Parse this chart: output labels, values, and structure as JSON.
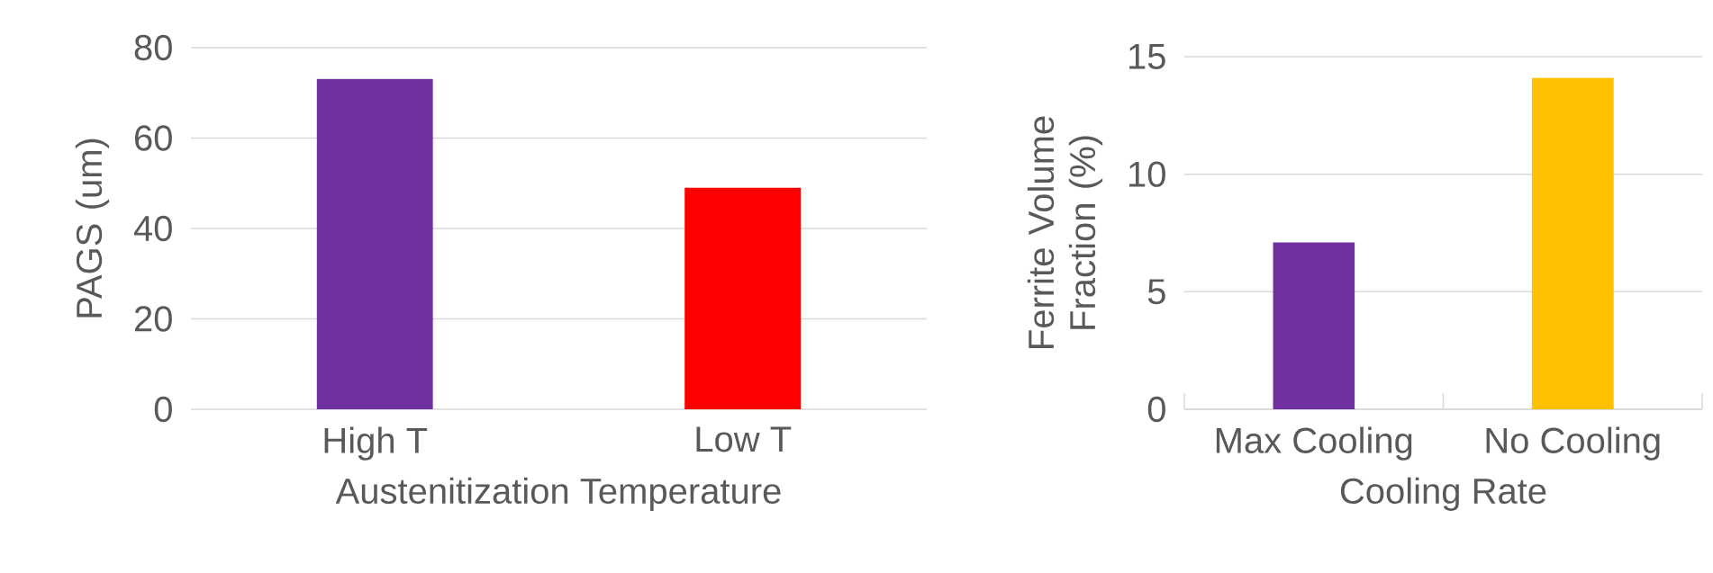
{
  "chart_data": [
    {
      "type": "bar",
      "categories": [
        "High T",
        "Low T"
      ],
      "values": [
        73.1,
        49
      ],
      "colors": [
        "#7030a0",
        "#ff0000"
      ],
      "ylim": [
        0,
        80
      ],
      "yticks": [
        0,
        20,
        40,
        60,
        80
      ],
      "grid": "y",
      "ylabel": "PAGS (um)",
      "xlabel": "Austenitization Temperature"
    },
    {
      "type": "bar",
      "categories": [
        "Max Cooling",
        "No Cooling"
      ],
      "values": [
        7.1,
        14.1
      ],
      "colors": [
        "#7030a0",
        "#ffc000"
      ],
      "ylim": [
        0,
        15
      ],
      "yticks": [
        0,
        5,
        10,
        15
      ],
      "grid": "y",
      "ylabel": "Ferrite Volume Fraction (%)",
      "xlabel": "Cooling Rate"
    }
  ]
}
